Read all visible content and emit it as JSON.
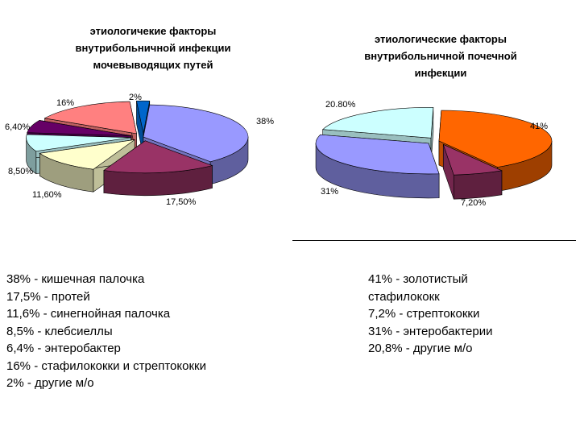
{
  "chart_data": [
    {
      "type": "pie",
      "title": "этиологичекие факторы\nвнутрибольничной инфекции\nмочевыводящих путей",
      "slices": [
        {
          "label": "38%",
          "value": 38,
          "color": "#9999ff",
          "explode": 0
        },
        {
          "label": "17,50%",
          "value": 17.5,
          "color": "#993366",
          "explode": 0.12
        },
        {
          "label": "11,60%",
          "value": 11.6,
          "color": "#ffffcc",
          "explode": 0.12
        },
        {
          "label": "8,50%",
          "value": 8.5,
          "color": "#ccffff",
          "explode": 0.12
        },
        {
          "label": "6,40%",
          "value": 6.4,
          "color": "#660066",
          "explode": 0.12
        },
        {
          "label": "16%",
          "value": 16,
          "color": "#ff8080",
          "explode": 0.12
        },
        {
          "label": "2%",
          "value": 2,
          "color": "#0066cc",
          "explode": 0.12
        }
      ]
    },
    {
      "type": "pie",
      "title": "этиологические факторы\nвнутрибольничной почечной\nинфекции",
      "slices": [
        {
          "label": "41%",
          "value": 41,
          "color": "#ff6600",
          "explode": 0
        },
        {
          "label": "7,20%",
          "value": 7.2,
          "color": "#993366",
          "explode": 0.12
        },
        {
          "label": "31%",
          "value": 31,
          "color": "#9999ff",
          "explode": 0.12
        },
        {
          "label": "20.80%",
          "value": 20.8,
          "color": "#ccffff",
          "explode": 0.12
        }
      ]
    }
  ],
  "legend_left": [
    "38% - кишечная палочка",
    "17,5% - протей",
    "11,6% - синегнойная палочка",
    "8,5% - клебсиеллы",
    "6,4%  - энтеробактер",
    "16% - стафилококки и стрептококки",
    "2% - другие м/о"
  ],
  "legend_right": [
    "41% - золотистый",
    "стафилококк",
    "7,2% - стрептококки",
    "31% - энтеробактерии",
    "20,8% - другие м/о"
  ]
}
